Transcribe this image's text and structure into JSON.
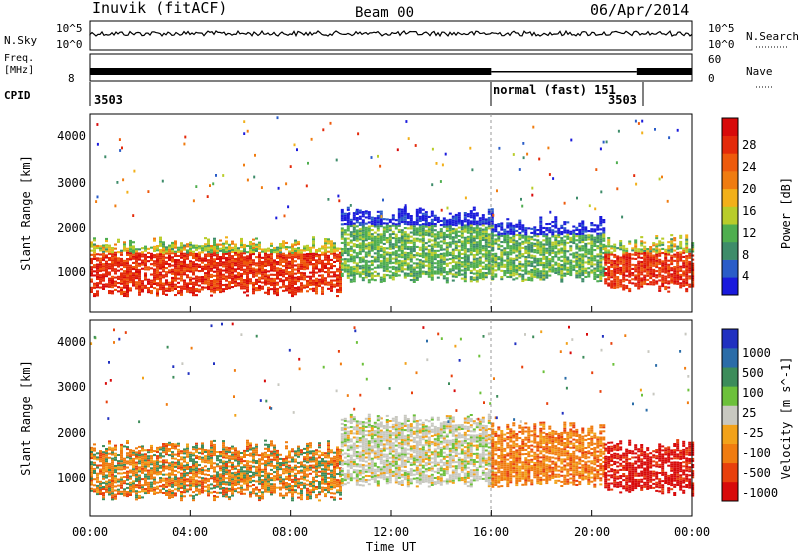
{
  "header": {
    "station": "Inuvik (fitACF)",
    "beam": "Beam 00",
    "date": "06/Apr/2014"
  },
  "noise_panel": {
    "left_label": "N.Sky",
    "right_label": "N.Search",
    "left_ticks": [
      "10^5",
      "10^0"
    ],
    "right_ticks": [
      "10^5",
      "10^0"
    ]
  },
  "freq_panel": {
    "left_label_1": "Freq.",
    "left_label_2": "[MHz]",
    "left_tick": "8",
    "right_label": "Nave",
    "right_ticks": [
      "60",
      "0"
    ]
  },
  "cpid_bar": {
    "label": "CPID",
    "segments": [
      {
        "start_h": 0,
        "end_h": 16,
        "label": "3503"
      },
      {
        "start_h": 16,
        "end_h": 21.8,
        "label": "normal (fast) 151"
      },
      {
        "start_h": 21.8,
        "end_h": 24,
        "label": "3503"
      }
    ]
  },
  "x_axis": {
    "label": "Time UT",
    "ticks": [
      "00:00",
      "04:00",
      "08:00",
      "12:00",
      "16:00",
      "20:00",
      "00:00"
    ]
  },
  "power_panel": {
    "ylabel": "Slant Range [km]",
    "yticks": [
      "4000",
      "3000",
      "2000",
      "1000"
    ],
    "colorbar_label": "Power [dB]",
    "colorbar_ticks": [
      "28",
      "24",
      "20",
      "16",
      "12",
      "8",
      "4"
    ],
    "colors": [
      "#1a1adc",
      "#2a5cc8",
      "#3e8c6a",
      "#4fae4f",
      "#b8cc2a",
      "#f2b01a",
      "#f07c10",
      "#ee5a0c",
      "#e42a0a",
      "#d80a0a"
    ]
  },
  "velocity_panel": {
    "ylabel": "Slant Range [km]",
    "yticks": [
      "4000",
      "3000",
      "2000",
      "1000"
    ],
    "colorbar_label": "Velocity [m s^-1]",
    "colorbar_ticks": [
      "1000",
      "500",
      "100",
      "25",
      "-25",
      "-100",
      "-500",
      "-1000"
    ],
    "colors": [
      "#2030c0",
      "#2a6ca8",
      "#3c8c5a",
      "#6cc03a",
      "#c8c8c0",
      "#f2a21a",
      "#f07c10",
      "#e8400c",
      "#d80a0a"
    ]
  },
  "chart_data": [
    {
      "type": "heatmap",
      "title": "Power",
      "xlabel": "Time UT",
      "ylabel": "Slant Range [km]",
      "xlim": [
        0,
        24
      ],
      "ylim": [
        180,
        4500
      ],
      "colorbar": "Power [dB]",
      "color_levels": [
        0,
        4,
        8,
        12,
        16,
        20,
        24,
        28,
        32
      ],
      "echo_bands": [
        {
          "t_start": 0,
          "t_end": 10,
          "range_low": 600,
          "range_high": 1700,
          "power_db": 29
        },
        {
          "t_start": 10,
          "t_end": 16,
          "range_low": 900,
          "range_high": 2300,
          "power_db": 10
        },
        {
          "t_start": 16,
          "t_end": 20.5,
          "range_low": 900,
          "range_high": 2100,
          "power_db": 12
        },
        {
          "t_start": 20.5,
          "t_end": 24,
          "range_low": 700,
          "range_high": 1700,
          "power_db": 27
        }
      ]
    },
    {
      "type": "heatmap",
      "title": "Velocity",
      "xlabel": "Time UT",
      "ylabel": "Slant Range [km]",
      "xlim": [
        0,
        24
      ],
      "ylim": [
        180,
        4500
      ],
      "colorbar": "Velocity [m s^-1]",
      "color_levels": [
        -1000,
        -500,
        -100,
        -25,
        25,
        100,
        500,
        1000
      ],
      "echo_bands": [
        {
          "t_start": 0,
          "t_end": 10,
          "range_low": 600,
          "range_high": 1700,
          "velocity": -200
        },
        {
          "t_start": 10,
          "t_end": 16,
          "range_low": 900,
          "range_high": 2300,
          "velocity": 0
        },
        {
          "t_start": 16,
          "t_end": 20.5,
          "range_low": 900,
          "range_high": 2100,
          "velocity": -150
        },
        {
          "t_start": 20.5,
          "t_end": 24,
          "range_low": 700,
          "range_high": 1700,
          "velocity": -600
        }
      ]
    }
  ]
}
